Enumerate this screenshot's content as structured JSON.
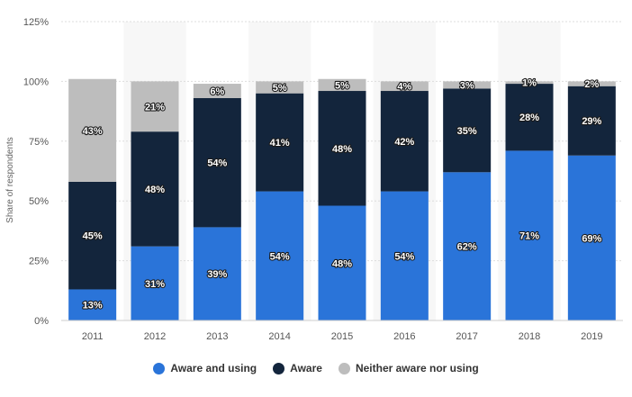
{
  "chart_data": {
    "type": "bar",
    "stacked": true,
    "categories": [
      "2011",
      "2012",
      "2013",
      "2014",
      "2015",
      "2016",
      "2017",
      "2018",
      "2019"
    ],
    "series": [
      {
        "name": "Aware and using",
        "color": "#2a74d9",
        "values": [
          13,
          31,
          39,
          54,
          48,
          54,
          62,
          71,
          69
        ]
      },
      {
        "name": "Aware",
        "color": "#13253c",
        "values": [
          45,
          48,
          54,
          41,
          48,
          42,
          35,
          28,
          29
        ]
      },
      {
        "name": "Neither aware nor using",
        "color": "#bdbdbd",
        "values": [
          43,
          21,
          6,
          5,
          5,
          4,
          3,
          1,
          2
        ]
      }
    ],
    "ylabel": "Share of respondents",
    "xlabel": "",
    "ylim": [
      0,
      125
    ],
    "yticks": [
      0,
      25,
      50,
      75,
      100,
      125
    ],
    "ytick_labels": [
      "0%",
      "25%",
      "50%",
      "75%",
      "100%",
      "125%"
    ],
    "value_suffix": "%",
    "grid": true,
    "legend_position": "bottom"
  }
}
